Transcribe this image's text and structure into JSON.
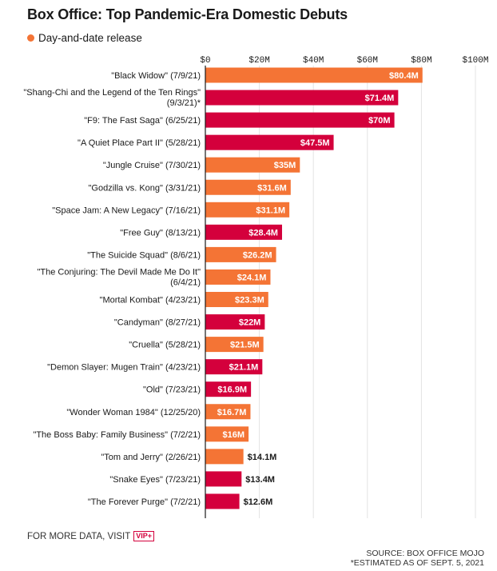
{
  "header": {
    "title": "Box Office: Top Pandemic-Era Domestic Debuts",
    "legend_label": "Day-and-date release"
  },
  "colors": {
    "day_and_date": "#f47435",
    "theatrical": "#d4003c"
  },
  "chart_data": {
    "type": "bar",
    "orientation": "horizontal",
    "title": "Box Office: Top Pandemic-Era Domestic Debuts",
    "legend": [
      "Day-and-date release"
    ],
    "xlim": [
      0,
      100
    ],
    "x_ticks": [
      "$0",
      "$20M",
      "$40M",
      "$60M",
      "$80M",
      "$100M"
    ],
    "x_tick_values": [
      0,
      20,
      40,
      60,
      80,
      100
    ],
    "grid": true,
    "categories": [
      [
        "\"Black Widow\" (7/9/21)"
      ],
      [
        "\"Shang-Chi and the Legend of the Ten Rings\"",
        "(9/3/21)*"
      ],
      [
        "\"F9: The Fast Saga\" (6/25/21)"
      ],
      [
        "\"A Quiet Place Part II\" (5/28/21)"
      ],
      [
        "\"Jungle Cruise\" (7/30/21)"
      ],
      [
        "\"Godzilla vs. Kong\" (3/31/21)"
      ],
      [
        "\"Space Jam: A New Legacy\" (7/16/21)"
      ],
      [
        "\"Free Guy\" (8/13/21)"
      ],
      [
        "\"The Suicide Squad\" (8/6/21)"
      ],
      [
        "\"The Conjuring: The Devil Made Me Do It\"",
        "(6/4/21)"
      ],
      [
        "\"Mortal Kombat\" (4/23/21)"
      ],
      [
        "\"Candyman\" (8/27/21)"
      ],
      [
        "\"Cruella\" (5/28/21)"
      ],
      [
        "\"Demon Slayer: Mugen Train\" (4/23/21)"
      ],
      [
        "\"Old\" (7/23/21)"
      ],
      [
        "\"Wonder Woman 1984\" (12/25/20)"
      ],
      [
        "\"The Boss Baby: Family Business\" (7/2/21)"
      ],
      [
        "\"Tom and Jerry\" (2/26/21)"
      ],
      [
        "\"Snake Eyes\" (7/23/21)"
      ],
      [
        "\"The Forever Purge\" (7/2/21)"
      ]
    ],
    "values": [
      80.4,
      71.4,
      70,
      47.5,
      35,
      31.6,
      31.1,
      28.4,
      26.2,
      24.1,
      23.3,
      22,
      21.5,
      21.1,
      16.9,
      16.7,
      16,
      14.1,
      13.4,
      12.6
    ],
    "value_labels": [
      "$80.4M",
      "$71.4M",
      "$70M",
      "$47.5M",
      "$35M",
      "$31.6M",
      "$31.1M",
      "$28.4M",
      "$26.2M",
      "$24.1M",
      "$23.3M",
      "$22M",
      "$21.5M",
      "$21.1M",
      "$16.9M",
      "$16.7M",
      "$16M",
      "$14.1M",
      "$13.4M",
      "$12.6M"
    ],
    "day_and_date": [
      true,
      false,
      false,
      false,
      true,
      true,
      true,
      false,
      true,
      true,
      true,
      false,
      true,
      false,
      false,
      true,
      true,
      true,
      false,
      false
    ]
  },
  "footer": {
    "more_data": "FOR MORE DATA, VISIT",
    "vip_badge": "VIP+",
    "source_line1": "SOURCE: BOX OFFICE MOJO",
    "source_line2": "*ESTIMATED AS OF SEPT. 5, 2021"
  }
}
